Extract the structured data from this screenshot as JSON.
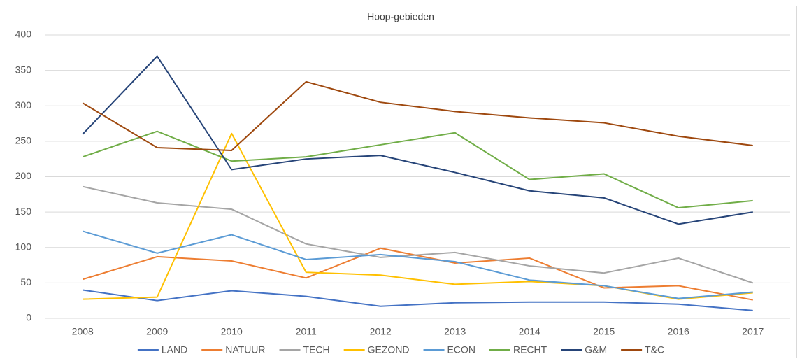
{
  "chart_data": {
    "type": "line",
    "title": "Hoop-gebieden",
    "categories": [
      "2008",
      "2009",
      "2010",
      "2011",
      "2012",
      "2013",
      "2014",
      "2015",
      "2016",
      "2017"
    ],
    "ylim": [
      0,
      400
    ],
    "yticks": [
      0,
      50,
      100,
      150,
      200,
      250,
      300,
      350,
      400
    ],
    "grid": true,
    "legend": "bottom",
    "series": [
      {
        "name": "LAND",
        "color": "#4472c4",
        "values": [
          40,
          25,
          39,
          31,
          17,
          22,
          23,
          23,
          20,
          11
        ]
      },
      {
        "name": "NATUUR",
        "color": "#ed7d31",
        "values": [
          55,
          87,
          81,
          57,
          99,
          78,
          85,
          43,
          46,
          26
        ]
      },
      {
        "name": "TECH",
        "color": "#a5a5a5",
        "values": [
          186,
          163,
          154,
          105,
          86,
          93,
          74,
          64,
          85,
          50
        ]
      },
      {
        "name": "GEZOND",
        "color": "#ffc000",
        "values": [
          27,
          30,
          261,
          65,
          61,
          48,
          52,
          46,
          27,
          36
        ]
      },
      {
        "name": "ECON",
        "color": "#5b9bd5",
        "values": [
          123,
          92,
          118,
          83,
          90,
          80,
          54,
          46,
          28,
          37
        ]
      },
      {
        "name": "RECHT",
        "color": "#70ad47",
        "values": [
          228,
          264,
          222,
          228,
          245,
          262,
          196,
          204,
          156,
          166
        ]
      },
      {
        "name": "G&M",
        "color": "#264478",
        "values": [
          260,
          370,
          210,
          225,
          230,
          206,
          180,
          170,
          133,
          150
        ]
      },
      {
        "name": "T&C",
        "color": "#9e480e",
        "values": [
          304,
          241,
          237,
          334,
          305,
          292,
          283,
          276,
          257,
          244
        ]
      }
    ]
  }
}
